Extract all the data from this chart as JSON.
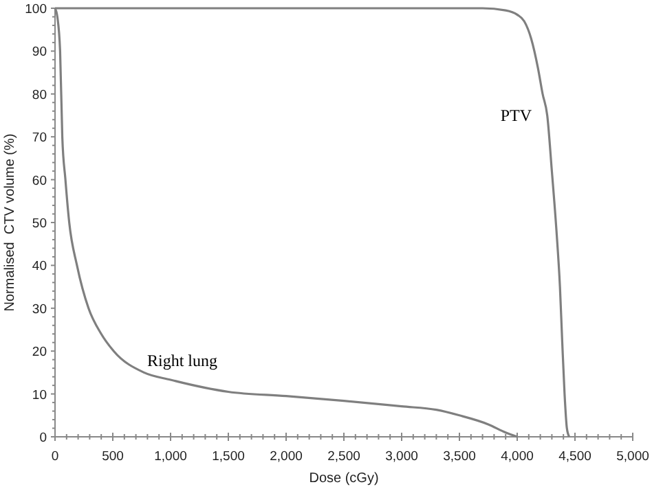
{
  "chart_data": {
    "type": "line",
    "xlabel": "Dose (cGy)",
    "ylabel": "Normalised  CTV volume (%)",
    "xlim": [
      0,
      5000
    ],
    "xticks": [
      0,
      {
        "value": 500,
        "label": "500"
      },
      {
        "value": 1000,
        "label": "1,000"
      },
      {
        "value": 1500,
        "label": "1,500"
      },
      {
        "value": 2000,
        "label": "2,000"
      },
      {
        "value": 2500,
        "label": "2,500"
      },
      {
        "value": 3000,
        "label": "3,000"
      },
      {
        "value": 3500,
        "label": "3,500"
      },
      {
        "value": 4000,
        "label": "4,000"
      },
      {
        "value": 4500,
        "label": "4,500"
      },
      {
        "value": 5000,
        "label": "5,000"
      }
    ],
    "ylim": [
      0,
      100
    ],
    "yticks": [
      0,
      10,
      20,
      30,
      40,
      50,
      60,
      70,
      80,
      90,
      100
    ],
    "grid": false,
    "marker": "none",
    "line_style": "solid",
    "series": [
      {
        "name": "PTV",
        "color": "#7f7f7f",
        "x": [
          0,
          3700,
          3900,
          4000,
          4060,
          4120,
          4180,
          4220,
          4260,
          4300,
          4340,
          4370,
          4390,
          4410,
          4430,
          4450
        ],
        "values": [
          100,
          100,
          99.5,
          98.5,
          97,
          93,
          86,
          80,
          75,
          62,
          48,
          35,
          22,
          10,
          2,
          0
        ]
      },
      {
        "name": "Right lung",
        "color": "#7f7f7f",
        "x": [
          0,
          20,
          44,
          63,
          90,
          123,
          190,
          290,
          400,
          508,
          770,
          1000,
          1500,
          2000,
          2500,
          3000,
          3300,
          3500,
          3750,
          3900,
          4000
        ],
        "values": [
          100,
          98,
          90,
          70,
          60,
          50,
          40,
          30,
          24,
          20,
          15,
          13.3,
          10.5,
          9.5,
          8.4,
          7.1,
          6.3,
          5,
          2.9,
          1,
          0
        ]
      }
    ]
  }
}
